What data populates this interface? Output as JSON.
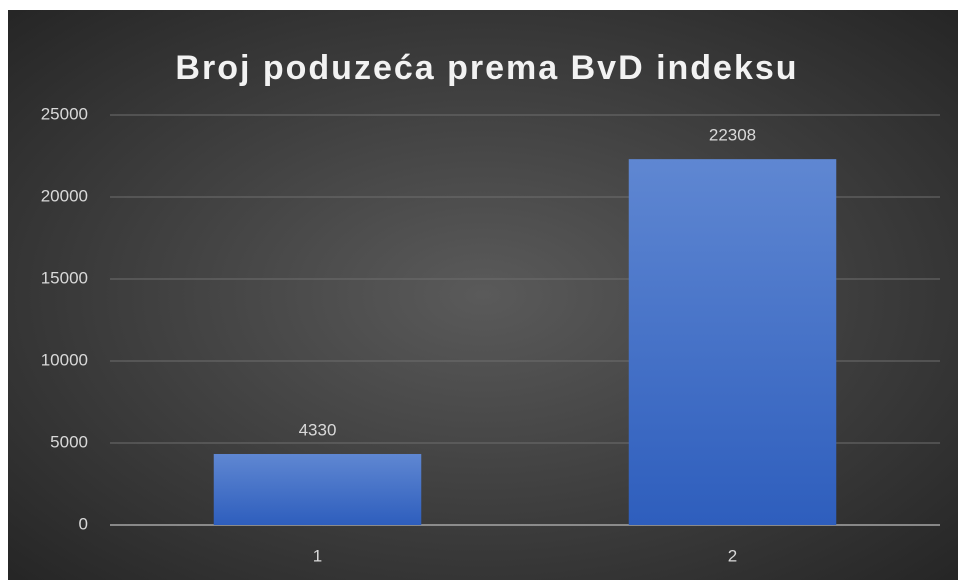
{
  "chart_data": {
    "type": "bar",
    "title": "Broj poduzeća prema BvD indeksu",
    "categories": [
      "1",
      "2"
    ],
    "values": [
      4330,
      22308
    ],
    "color": "#4472c4",
    "ylim": [
      0,
      25000
    ],
    "yticks": [
      0,
      5000,
      10000,
      15000,
      20000,
      25000
    ],
    "grid": true
  }
}
